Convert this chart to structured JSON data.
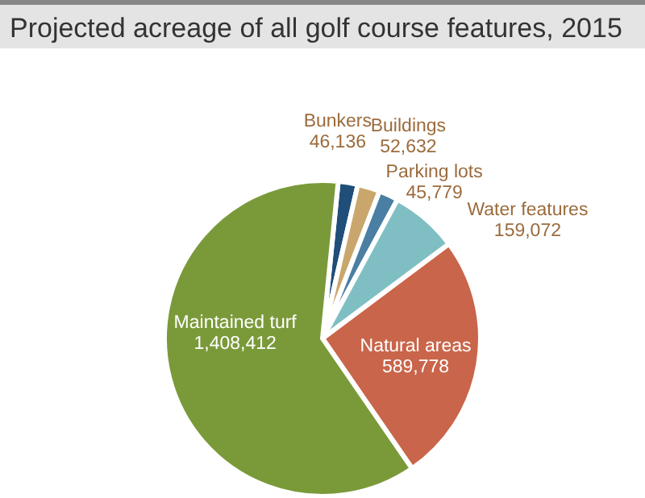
{
  "chart_data": {
    "type": "pie",
    "title": "Projected acreage of all golf course features, 2015",
    "categories": [
      "Bunkers",
      "Buildings",
      "Parking lots",
      "Water features",
      "Natural areas",
      "Maintained turf"
    ],
    "values": [
      46136,
      52632,
      45779,
      159072,
      589778,
      1408412
    ],
    "colors": [
      "#1f4e79",
      "#c9a66b",
      "#4a7fa3",
      "#7fbfc4",
      "#c9654a",
      "#7a9a3a"
    ],
    "value_labels": [
      "46,136",
      "52,632",
      "45,779",
      "159,072",
      "589,778",
      "1,408,412"
    ]
  }
}
